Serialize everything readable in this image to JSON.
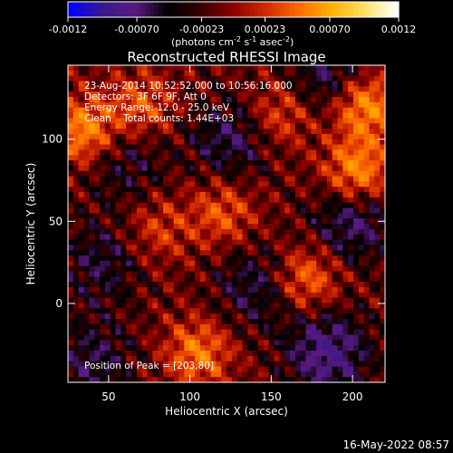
{
  "chart_data": {
    "type": "heatmap",
    "title": "Reconstructed RHESSI Image",
    "xlabel": "Heliocentric X (arcsec)",
    "ylabel": "Heliocentric Y (arcsec)",
    "xlim": [
      25,
      220
    ],
    "ylim": [
      -48,
      145
    ],
    "x_ticks": [
      50,
      100,
      150,
      200
    ],
    "y_ticks": [
      0,
      50,
      100
    ],
    "colorbar": {
      "min": -0.0012,
      "max": 0.0012,
      "ticks": [
        "-0.0012",
        "-0.00070",
        "-0.00023",
        "0.00023",
        "0.00070",
        "0.0012"
      ],
      "units_text": "(photons cm",
      "units_sup1": "-2",
      "units_mid": " s",
      "units_sup2": "-1",
      "units_end": " asec",
      "units_sup3": "-2",
      "units_close": ")",
      "colormap": [
        "#0000ff",
        "#3a1a8a",
        "#5a1a80",
        "#000000",
        "#3a0000",
        "#8b0000",
        "#d02a00",
        "#ff6a00",
        "#ffb000",
        "#ffe060",
        "#ffffff"
      ]
    },
    "annotations": [
      "23-Aug-2014 10:52:52.000 to 10:56:16.000",
      "Detectors: 3F 6F 9F, Att 0",
      "Energy Range: 12.0 - 25.0 keV",
      "Clean    Total counts: 1.44E+03"
    ],
    "peak_label": "Position of Peak = [203,80]",
    "peak": [
      203,
      80
    ],
    "hotspots": [
      {
        "x": 208,
        "y": 120,
        "level": 1.0
      },
      {
        "x": 203,
        "y": 80,
        "level": 1.0
      },
      {
        "x": 35,
        "y": 105,
        "level": 0.95
      },
      {
        "x": 120,
        "y": 55,
        "level": 0.6
      },
      {
        "x": 172,
        "y": 15,
        "level": 0.75
      },
      {
        "x": 105,
        "y": -30,
        "level": 0.8
      },
      {
        "x": 70,
        "y": 120,
        "level": 0.6
      },
      {
        "x": 155,
        "y": 115,
        "level": 0.55
      },
      {
        "x": 80,
        "y": 45,
        "level": 0.45
      }
    ],
    "coldspots": [
      {
        "x": 185,
        "y": -30,
        "level": -0.9
      },
      {
        "x": 200,
        "y": 50,
        "level": -0.7
      },
      {
        "x": 125,
        "y": 100,
        "level": -0.6
      },
      {
        "x": 140,
        "y": 10,
        "level": -0.55
      },
      {
        "x": 185,
        "y": 140,
        "level": -0.6
      },
      {
        "x": 45,
        "y": 25,
        "level": -0.5
      },
      {
        "x": 60,
        "y": 85,
        "level": -0.45
      },
      {
        "x": 40,
        "y": -35,
        "level": -0.55
      }
    ]
  },
  "footer_date": "16-May-2022 08:57"
}
